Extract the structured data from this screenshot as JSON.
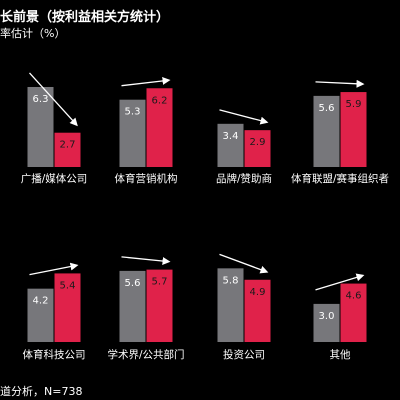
{
  "title": "长前景（按利益相关方统计）",
  "subtitle": "率估计（%）",
  "footer": "道分析，N=738",
  "colors": {
    "background": "#000000",
    "bar_before": "#77777b",
    "bar_after": "#e0224a",
    "text": "#ffffff",
    "arrow": "#ffffff"
  },
  "chart_data": {
    "type": "bar",
    "ylim": [
      0,
      7
    ],
    "series": [
      {
        "values": [
          6.3,
          5.3,
          3.4,
          5.6,
          4.2,
          5.6,
          5.8,
          3.0
        ]
      },
      {
        "values": [
          2.7,
          6.2,
          2.9,
          5.9,
          5.4,
          5.7,
          4.9,
          4.6
        ]
      }
    ],
    "groups": [
      {
        "label": "广播/媒体公司",
        "before": 6.3,
        "after": 2.7
      },
      {
        "label": "体育营销机构",
        "before": 5.3,
        "after": 6.2
      },
      {
        "label": "品牌/赞助商",
        "before": 3.4,
        "after": 2.9
      },
      {
        "label": "体育联盟/赛事组织者",
        "before": 5.6,
        "after": 5.9
      },
      {
        "label": "体育科技公司",
        "before": 4.2,
        "after": 5.4
      },
      {
        "label": "学术界/公共部门",
        "before": 5.6,
        "after": 5.7
      },
      {
        "label": "投资公司",
        "before": 5.8,
        "after": 4.9
      },
      {
        "label": "其他",
        "before": 3.0,
        "after": 4.6
      }
    ]
  }
}
